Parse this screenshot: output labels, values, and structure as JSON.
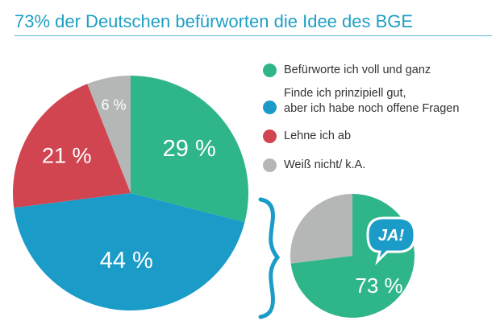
{
  "title": "73% der Deutschen befürworten die Idee des BGE",
  "chart_data": [
    {
      "type": "pie",
      "title": "",
      "slices": [
        {
          "label": "Befürworte ich voll und ganz",
          "value": 29,
          "display": "29 %",
          "color": "#2fb58a"
        },
        {
          "label": "Finde ich prinzipiell gut, aber ich habe noch offene Fragen",
          "value": 44,
          "display": "44 %",
          "color": "#1b9cc8"
        },
        {
          "label": "Lehne ich ab",
          "value": 21,
          "display": "21 %",
          "color": "#d14550"
        },
        {
          "label": "Weiß nicht/ k.A.",
          "value": 6,
          "display": "6 %",
          "color": "#b5b7b6"
        }
      ],
      "start": "12 o'clock",
      "direction": "clockwise",
      "legend": "right"
    },
    {
      "type": "pie",
      "title": "",
      "slices": [
        {
          "label": "JA!",
          "value": 73,
          "display": "73 %",
          "color": "#2fb58a"
        },
        {
          "label": "",
          "value": 27,
          "display": "",
          "color": "#b5b7b6"
        }
      ],
      "start": "12 o'clock",
      "direction": "clockwise",
      "badge": "JA!"
    }
  ],
  "legend": {
    "items": [
      {
        "line1": "Befürworte ich voll und ganz",
        "line2": "",
        "color": "#2fb58a"
      },
      {
        "line1": "Finde ich prinzipiell gut,",
        "line2": "aber ich habe noch offene Fragen",
        "color": "#1b9cc8"
      },
      {
        "line1": "Lehne ich ab",
        "line2": "",
        "color": "#d14550"
      },
      {
        "line1": "Weiß nicht/ k.A.",
        "line2": "",
        "color": "#b5b7b6"
      }
    ]
  },
  "colors": {
    "accent": "#1f9fc4",
    "bubble_fill": "#1b9cc8",
    "bubble_text": "#ffffff",
    "brace": "#1b9cc8"
  },
  "icons": {
    "bracket": "curly-brace-icon",
    "speech_bubble": "speech-bubble-icon"
  }
}
